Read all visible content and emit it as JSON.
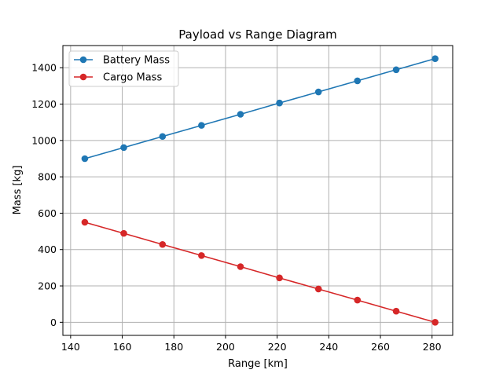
{
  "chart_data": {
    "type": "line",
    "title": "Payload vs Range Diagram",
    "xlabel": "Range [km]",
    "ylabel": "Mass [kg]",
    "xlim": [
      137,
      288
    ],
    "ylim": [
      -72,
      1522
    ],
    "xticks": [
      140,
      160,
      180,
      200,
      220,
      240,
      260,
      280
    ],
    "yticks": [
      0,
      200,
      400,
      600,
      800,
      1000,
      1200,
      1400
    ],
    "grid": true,
    "legend_position": "top-left",
    "series": [
      {
        "name": "Battery Mass",
        "color": "#1f77b4",
        "x": [
          145.5,
          160.6,
          175.6,
          190.7,
          205.8,
          220.9,
          236.0,
          251.1,
          266.1,
          281.2
        ],
        "y": [
          900,
          961,
          1022,
          1083,
          1144,
          1206,
          1267,
          1328,
          1389,
          1450
        ]
      },
      {
        "name": "Cargo Mass",
        "color": "#d62728",
        "x": [
          145.5,
          160.6,
          175.6,
          190.7,
          205.8,
          220.9,
          236.0,
          251.1,
          266.1,
          281.2
        ],
        "y": [
          550,
          489,
          428,
          367,
          306,
          244,
          183,
          122,
          61,
          0
        ]
      }
    ]
  }
}
